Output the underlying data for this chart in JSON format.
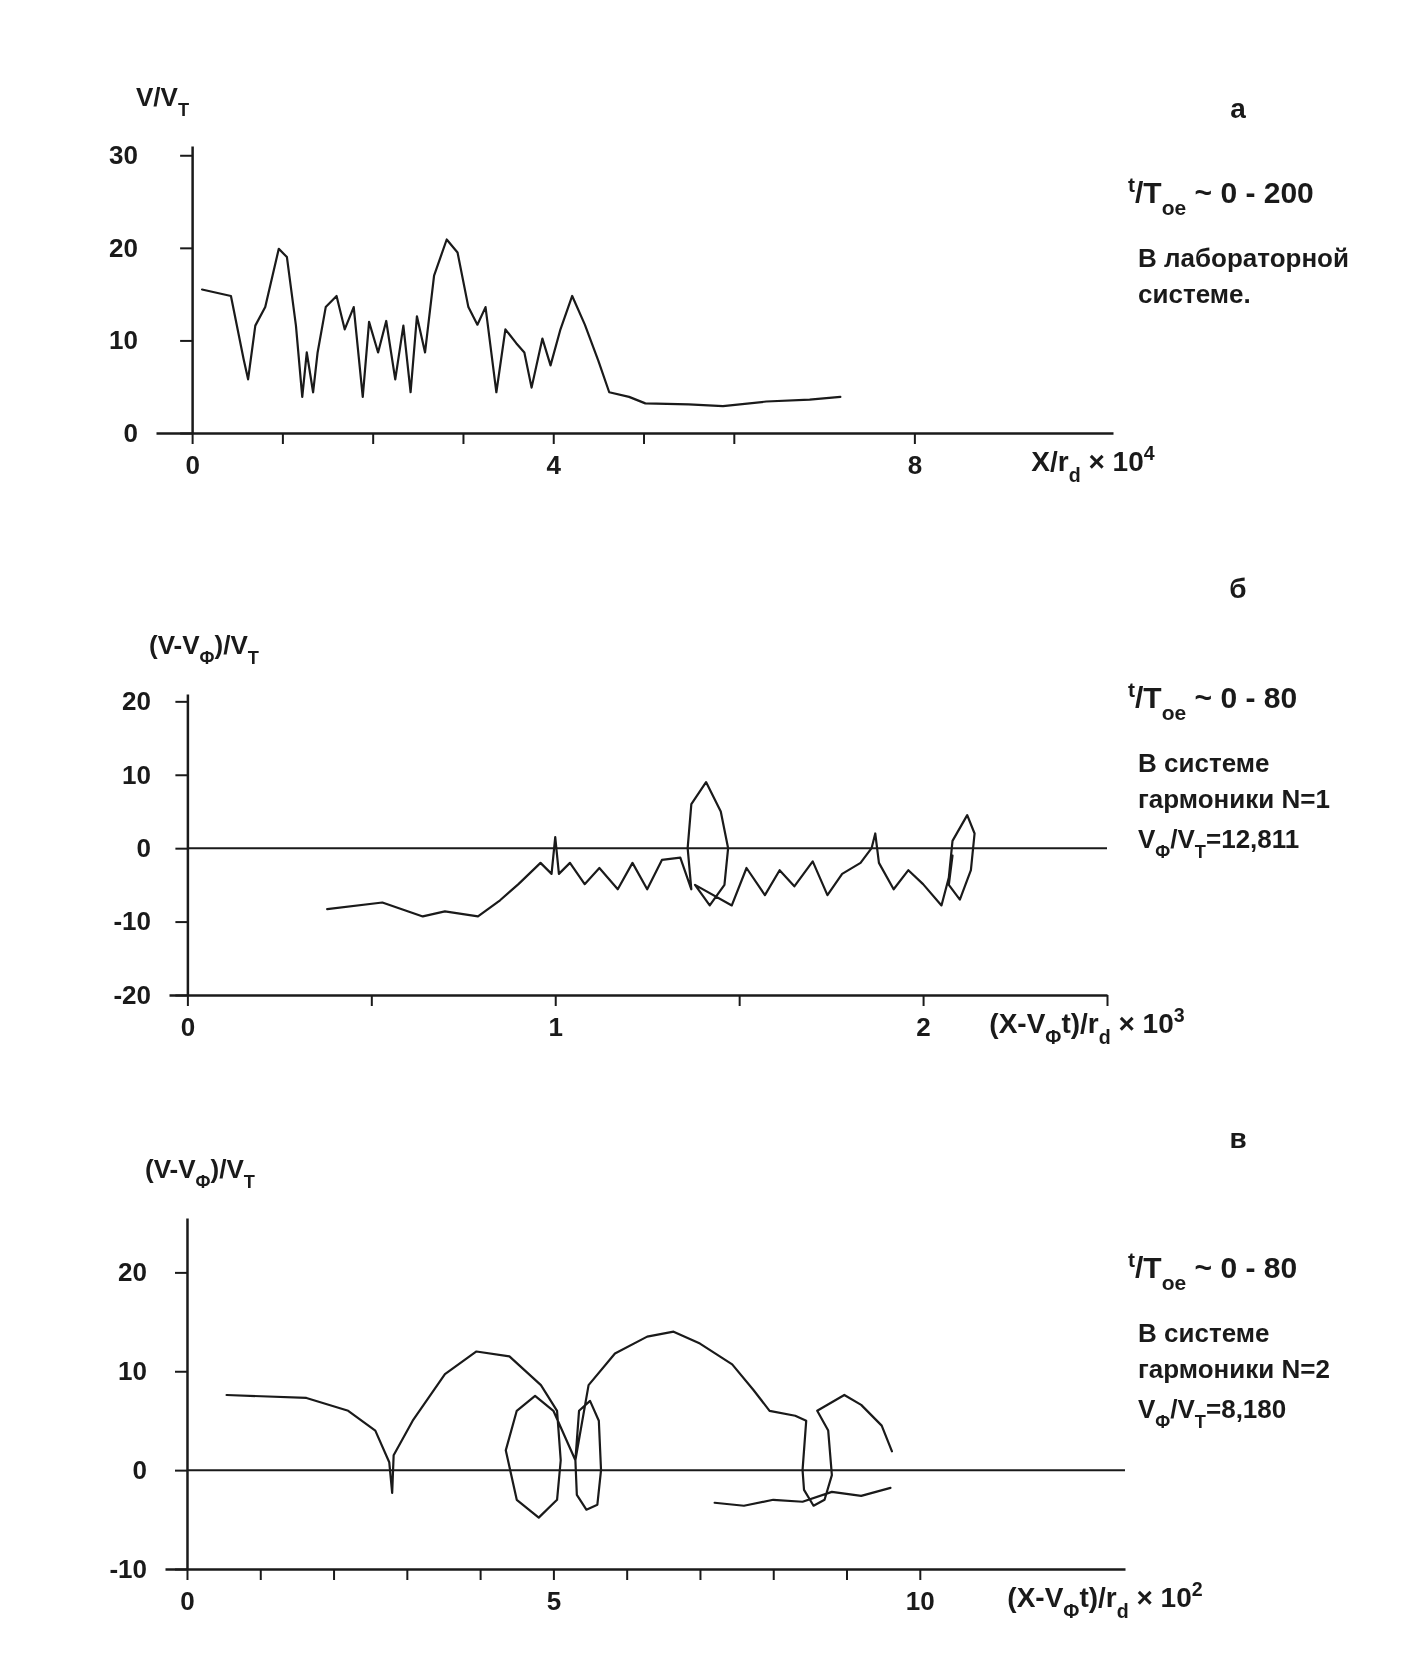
{
  "chart_data": [
    {
      "type": "line",
      "ylabel": "V/V$_{T}$",
      "xlabel": "X/r$_{d}$ × 10$^{4}$",
      "annotations": [
        "а",
        "$^{t}$/T$_{oe}$ ~ 0 - 200",
        "В лабораторной системе."
      ],
      "xlim": [
        -0.4,
        10.2
      ],
      "ylim": [
        0,
        31
      ],
      "xticks": [
        0,
        {
          "value": 1,
          "label": null
        },
        {
          "value": 2,
          "label": null
        },
        {
          "value": 3,
          "label": null
        },
        4,
        {
          "value": 5,
          "label": null
        },
        {
          "value": 6,
          "label": null
        },
        8
      ],
      "yticks": [
        0,
        10,
        20,
        30
      ],
      "series": [
        {
          "color": "#1a1a1a",
          "x": [
            0.11,
            0.43,
            0.57,
            0.62,
            0.7,
            0.81,
            0.96,
            1.05,
            1.15,
            1.22,
            1.27,
            1.34,
            1.39,
            1.48,
            1.6,
            1.69,
            1.79,
            1.89,
            1.96,
            2.06,
            2.15,
            2.25,
            2.34,
            2.42,
            2.49,
            2.58,
            2.68,
            2.82,
            2.94,
            3.06,
            3.16,
            3.25,
            3.37,
            3.47,
            3.59,
            3.68,
            3.76,
            3.88,
            3.97,
            4.08,
            4.21,
            4.35,
            4.5,
            4.62,
            4.84,
            5.02,
            5.5,
            5.88,
            6.36,
            6.84,
            7.18
          ],
          "values": [
            15.5,
            14.8,
            8,
            5.8,
            11.6,
            13.6,
            19.9,
            19,
            11.6,
            3.9,
            8.7,
            4.4,
            8.7,
            13.6,
            14.8,
            11.2,
            13.6,
            3.9,
            12,
            8.7,
            12.1,
            5.8,
            11.6,
            4.4,
            12.6,
            8.7,
            17,
            20.9,
            19.5,
            13.6,
            11.7,
            13.6,
            4.4,
            11.2,
            9.7,
            8.7,
            4.9,
            10.2,
            7.3,
            11.2,
            14.8,
            11.7,
            7.8,
            4.4,
            3.9,
            3.2,
            3.1,
            2.9,
            3.4,
            3.6,
            3.9
          ]
        }
      ]
    },
    {
      "type": "line",
      "ylabel": "(V-V$_{Φ}$)/V$_{T}$",
      "xlabel": "(X-V$_{Φ}$t)/r$_{d}$ × 10$^{3}$",
      "annotations": [
        "б",
        "$^{t}$/T$_{oe}$ ~ 0 - 80",
        "В системе гармоники N=1",
        "V$_{Φ}$/V$_{T}$=12,811"
      ],
      "xlim": [
        -0.05,
        2.5
      ],
      "ylim": [
        -20,
        21
      ],
      "xticks": [
        0,
        {
          "value": 0.5,
          "label": null
        },
        1,
        {
          "value": 1.5,
          "label": null
        },
        2,
        {
          "value": 2.5,
          "label": null
        }
      ],
      "yticks": [
        -20,
        -10,
        0,
        10,
        20
      ],
      "ref_lines": [
        {
          "axis": "y",
          "value": 0
        }
      ],
      "series": [
        {
          "color": "#1a1a1a",
          "x": [
            0.38,
            0.53,
            0.64,
            0.7,
            0.79,
            0.85,
            0.9,
            0.96,
            0.99,
            1.0,
            1.01,
            1.04,
            1.08,
            1.12,
            1.17,
            1.21,
            1.25,
            1.29,
            1.34,
            1.37,
            1.36,
            1.37,
            1.41,
            1.45,
            1.47,
            1.46,
            1.42,
            1.38,
            1.48,
            1.52,
            1.57,
            1.61,
            1.65,
            1.7,
            1.74,
            1.78,
            1.83,
            1.86,
            1.87,
            1.88,
            1.92,
            1.96,
            2.0,
            2.05,
            2.07,
            2.08,
            2.12,
            2.14,
            2.13,
            2.1,
            2.07,
            2.08
          ],
          "values": [
            -8.3,
            -7.4,
            -9.3,
            -8.6,
            -9.3,
            -7.1,
            -4.9,
            -2,
            -3.5,
            1.5,
            -3.5,
            -2,
            -4.9,
            -2.7,
            -5.6,
            -2,
            -5.6,
            -1.6,
            -1.3,
            -5.6,
            0,
            6,
            9,
            5,
            0,
            -5,
            -7.8,
            -5,
            -7.8,
            -2.7,
            -6.4,
            -3,
            -5.2,
            -1.8,
            -6.4,
            -3.5,
            -2,
            0,
            2,
            -2,
            -5.6,
            -3,
            -4.9,
            -7.8,
            -4,
            1,
            4.5,
            2,
            -3,
            -7,
            -5,
            -1
          ]
        }
      ]
    },
    {
      "type": "line",
      "ylabel": "(V-V$_{Φ}$)/V$_{T}$",
      "xlabel": "(X-V$_{Φ}$t)/r$_{d}$ × 10$^{2}$",
      "annotations": [
        "в",
        "$^{t}$/T$_{oe}$ ~ 0 - 80",
        "В системе гармоники N=2",
        "V$_{Φ}$/V$_{T}$=8,180"
      ],
      "xlim": [
        -0.3,
        12.8
      ],
      "ylim": [
        -10,
        25.5
      ],
      "xticks": [
        0,
        {
          "value": 1,
          "label": null
        },
        {
          "value": 2,
          "label": null
        },
        {
          "value": 3,
          "label": null
        },
        {
          "value": 4,
          "label": null
        },
        5,
        {
          "value": 6,
          "label": null
        },
        {
          "value": 7,
          "label": null
        },
        {
          "value": 8,
          "label": null
        },
        {
          "value": 9,
          "label": null
        },
        10
      ],
      "yticks": [
        -10,
        0,
        10,
        20
      ],
      "ref_lines": [
        {
          "axis": "y",
          "value": 0
        }
      ],
      "series": [
        {
          "color": "#1a1a1a",
          "x": [
            0.54,
            1.63,
            2.2,
            2.57,
            2.76,
            2.8,
            2.82,
            3.08,
            3.52,
            3.95,
            4.4,
            4.83,
            5.05,
            5.1,
            5.05,
            4.8,
            4.5,
            4.35,
            4.5,
            4.75,
            5.0,
            5.3,
            5.32,
            5.45,
            5.6,
            5.65,
            5.62,
            5.5,
            5.35,
            5.3,
            5.48,
            5.84,
            6.28,
            6.64,
            7.0,
            7.44,
            7.73,
            7.95,
            8.3,
            8.45,
            8.4,
            8.42,
            8.55,
            8.7,
            8.8,
            8.75,
            8.6,
            8.97,
            9.2,
            9.48,
            9.62,
            null,
            7.2,
            7.6,
            8.0,
            8.4,
            8.8,
            9.2,
            9.6
          ],
          "values": [
            7.6,
            7.3,
            6,
            4,
            0.8,
            -2.3,
            1.5,
            5,
            9.7,
            12,
            11.5,
            8.6,
            6,
            1,
            -3,
            -4.8,
            -3,
            2,
            6,
            7.5,
            6,
            1,
            -2.5,
            -4,
            -3.5,
            0,
            5,
            7,
            6,
            1,
            8.6,
            11.8,
            13.5,
            14,
            12.8,
            10.7,
            8.1,
            6,
            5.5,
            5,
            0,
            -2,
            -3.6,
            -3,
            -0.5,
            4,
            6,
            7.6,
            6.6,
            4.5,
            1.9,
            null,
            -3.3,
            -3.6,
            -3,
            -3.2,
            -2.2,
            -2.6,
            -1.8
          ]
        }
      ]
    }
  ]
}
